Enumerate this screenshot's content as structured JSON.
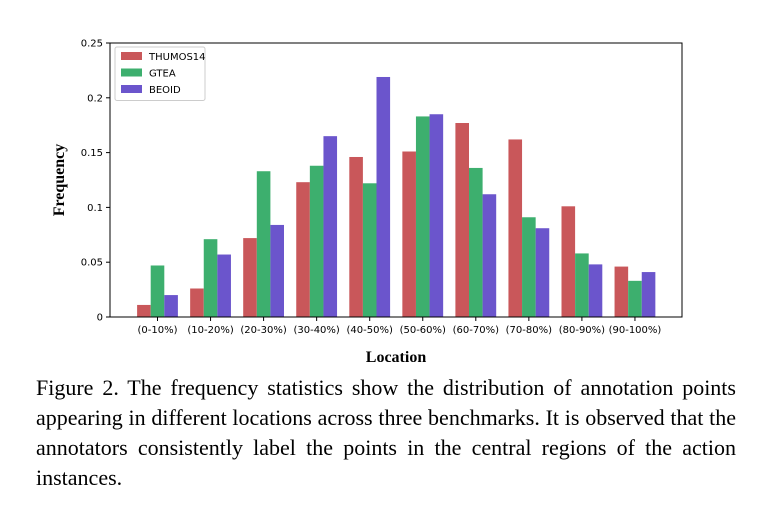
{
  "chart_data": {
    "type": "bar",
    "categories": [
      "(0-10%)",
      "(10-20%)",
      "(20-30%)",
      "(30-40%)",
      "(40-50%)",
      "(50-60%)",
      "(60-70%)",
      "(70-80%)",
      "(80-90%)",
      "(90-100%)"
    ],
    "series": [
      {
        "name": "THUMOS14",
        "color": "#c9575a",
        "values": [
          0.011,
          0.026,
          0.072,
          0.123,
          0.146,
          0.151,
          0.177,
          0.162,
          0.101,
          0.046
        ]
      },
      {
        "name": "GTEA",
        "color": "#3daf6e",
        "values": [
          0.047,
          0.071,
          0.133,
          0.138,
          0.122,
          0.183,
          0.136,
          0.091,
          0.058,
          0.033
        ]
      },
      {
        "name": "BEOID",
        "color": "#6b55cc",
        "values": [
          0.02,
          0.057,
          0.084,
          0.165,
          0.219,
          0.185,
          0.112,
          0.081,
          0.048,
          0.041
        ]
      }
    ],
    "xlabel": "Location",
    "ylabel": "Frequency",
    "ylim": [
      0,
      0.25
    ],
    "yticks": [
      "0",
      "0.05",
      "0.1",
      "0.15",
      "0.2",
      "0.25"
    ],
    "legend_position": "top-left",
    "grid": false
  },
  "caption": "Figure 2. The frequency statistics show the distribution of annotation points appearing in different locations across three benchmarks. It is observed that the annotators consistently label the points in the central regions of the action instances."
}
